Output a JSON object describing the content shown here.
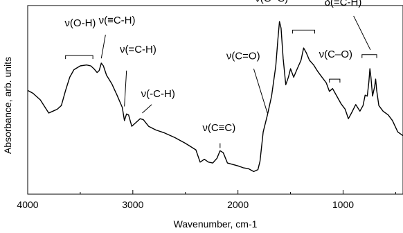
{
  "chart_data": {
    "type": "line",
    "xlabel": "Wavenumber, cm-1",
    "ylabel": "Absorbance, arb. units",
    "xlim": [
      4000,
      430
    ],
    "x_reversed": true,
    "y_ticks_shown": false,
    "grid": false,
    "xticks": [
      {
        "value": 4000,
        "label": "4000"
      },
      {
        "value": 3000,
        "label": "3000"
      },
      {
        "value": 2000,
        "label": "2000"
      },
      {
        "value": 1000,
        "label": "1000"
      }
    ],
    "series": [
      {
        "color": "#000000",
        "points": [
          [
            4000,
            0.55
          ],
          [
            3950,
            0.535
          ],
          [
            3880,
            0.5
          ],
          [
            3800,
            0.43
          ],
          [
            3760,
            0.44
          ],
          [
            3720,
            0.45
          ],
          [
            3680,
            0.47
          ],
          [
            3640,
            0.55
          ],
          [
            3600,
            0.62
          ],
          [
            3560,
            0.66
          ],
          [
            3500,
            0.68
          ],
          [
            3440,
            0.685
          ],
          [
            3400,
            0.68
          ],
          [
            3370,
            0.665
          ],
          [
            3340,
            0.645
          ],
          [
            3320,
            0.655
          ],
          [
            3300,
            0.695
          ],
          [
            3280,
            0.68
          ],
          [
            3250,
            0.63
          ],
          [
            3200,
            0.585
          ],
          [
            3150,
            0.525
          ],
          [
            3100,
            0.46
          ],
          [
            3080,
            0.39
          ],
          [
            3060,
            0.425
          ],
          [
            3040,
            0.42
          ],
          [
            3010,
            0.36
          ],
          [
            2970,
            0.38
          ],
          [
            2930,
            0.4
          ],
          [
            2900,
            0.395
          ],
          [
            2850,
            0.36
          ],
          [
            2780,
            0.34
          ],
          [
            2700,
            0.325
          ],
          [
            2600,
            0.3
          ],
          [
            2500,
            0.27
          ],
          [
            2400,
            0.235
          ],
          [
            2360,
            0.17
          ],
          [
            2320,
            0.185
          ],
          [
            2280,
            0.17
          ],
          [
            2240,
            0.165
          ],
          [
            2200,
            0.19
          ],
          [
            2170,
            0.23
          ],
          [
            2140,
            0.22
          ],
          [
            2100,
            0.165
          ],
          [
            2000,
            0.15
          ],
          [
            1950,
            0.14
          ],
          [
            1900,
            0.135
          ],
          [
            1850,
            0.12
          ],
          [
            1810,
            0.13
          ],
          [
            1790,
            0.175
          ],
          [
            1760,
            0.33
          ],
          [
            1720,
            0.42
          ],
          [
            1680,
            0.52
          ],
          [
            1640,
            0.68
          ],
          [
            1620,
            0.82
          ],
          [
            1605,
            0.915
          ],
          [
            1590,
            0.88
          ],
          [
            1570,
            0.72
          ],
          [
            1545,
            0.58
          ],
          [
            1520,
            0.62
          ],
          [
            1500,
            0.665
          ],
          [
            1470,
            0.62
          ],
          [
            1440,
            0.66
          ],
          [
            1400,
            0.71
          ],
          [
            1375,
            0.775
          ],
          [
            1350,
            0.75
          ],
          [
            1320,
            0.71
          ],
          [
            1280,
            0.685
          ],
          [
            1240,
            0.65
          ],
          [
            1200,
            0.62
          ],
          [
            1160,
            0.59
          ],
          [
            1130,
            0.545
          ],
          [
            1100,
            0.56
          ],
          [
            1060,
            0.52
          ],
          [
            1020,
            0.48
          ],
          [
            980,
            0.45
          ],
          [
            950,
            0.4
          ],
          [
            920,
            0.43
          ],
          [
            880,
            0.475
          ],
          [
            840,
            0.44
          ],
          [
            810,
            0.47
          ],
          [
            790,
            0.525
          ],
          [
            770,
            0.52
          ],
          [
            755,
            0.595
          ],
          [
            745,
            0.665
          ],
          [
            735,
            0.62
          ],
          [
            720,
            0.52
          ],
          [
            700,
            0.57
          ],
          [
            690,
            0.61
          ],
          [
            680,
            0.55
          ],
          [
            660,
            0.47
          ],
          [
            620,
            0.44
          ],
          [
            570,
            0.42
          ],
          [
            530,
            0.39
          ],
          [
            480,
            0.33
          ],
          [
            430,
            0.31
          ]
        ]
      }
    ],
    "annotations": [
      {
        "text": "ν(O-H)",
        "x": 3500,
        "y": 0.89,
        "bracket": [
          3640,
          3380
        ],
        "bracket_y": 0.735,
        "lead_to": null
      },
      {
        "text": "ν(≡C-H)",
        "x": 3150,
        "y": 0.905,
        "bracket": null,
        "lead_from": [
          3260,
          0.845
        ],
        "lead_to": [
          3300,
          0.72
        ]
      },
      {
        "text": "ν(=C-H)",
        "x": 2950,
        "y": 0.75,
        "bracket": null,
        "lead_from": [
          3060,
          0.655
        ],
        "lead_to": [
          3080,
          0.465
        ]
      },
      {
        "text": "ν(-C-H)",
        "x": 2760,
        "y": 0.515,
        "bracket": null,
        "lead_from": [
          2820,
          0.475
        ],
        "lead_to": [
          2910,
          0.43
        ]
      },
      {
        "text": "ν(C≡C)",
        "x": 2180,
        "y": 0.335,
        "bracket": null,
        "lead_from": [
          2170,
          0.27
        ],
        "lead_to": [
          2170,
          0.245
        ]
      },
      {
        "text": "ν(C=O)",
        "x": 1950,
        "y": 0.715,
        "bracket": null,
        "lead_from": [
          1850,
          0.665
        ],
        "lead_to": [
          1720,
          0.43
        ]
      },
      {
        "text": "ν(C=C)",
        "x": 1680,
        "y": 1.02,
        "bracket": null,
        "lead_to": null
      },
      {
        "text": "δ(=C-H)",
        "x": 1000,
        "y": 1.0,
        "bracket": [
          1480,
          1270
        ],
        "bracket_y": 0.87,
        "lead_from": [
          900,
          0.945
        ],
        "lead_to": [
          740,
          0.765
        ],
        "bracket2": [
          820,
          680
        ],
        "bracket2_y": 0.74
      },
      {
        "text": "ν(C–O)",
        "x": 1070,
        "y": 0.725,
        "bracket": [
          1130,
          1030
        ],
        "bracket_y": 0.61,
        "lead_to": null
      }
    ]
  }
}
